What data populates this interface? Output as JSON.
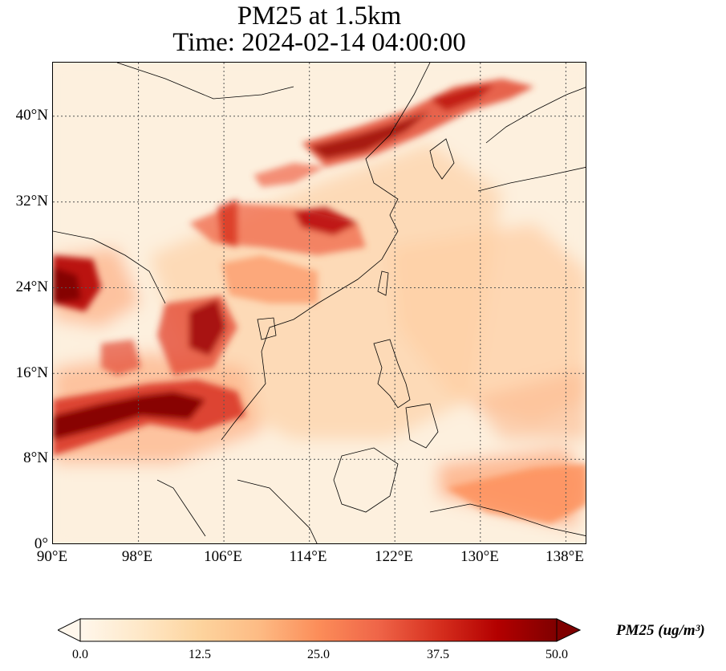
{
  "title": {
    "line1": "PM25 at 1.5km",
    "line2": "Time: 2024-02-14 04:00:00"
  },
  "map": {
    "extent": {
      "lon_min": 90,
      "lon_max": 140,
      "lat_min": 0,
      "lat_max": 45
    },
    "gridlines": true,
    "lat_ticks": [
      {
        "value": 40,
        "label": "40°N"
      },
      {
        "value": 32,
        "label": "32°N"
      },
      {
        "value": 24,
        "label": "24°N"
      },
      {
        "value": 16,
        "label": "16°N"
      },
      {
        "value": 8,
        "label": "8°N"
      },
      {
        "value": 0,
        "label": "0°"
      }
    ],
    "lon_ticks": [
      {
        "value": 90,
        "label": "90°E"
      },
      {
        "value": 98,
        "label": "98°E"
      },
      {
        "value": 106,
        "label": "106°E"
      },
      {
        "value": 114,
        "label": "114°E"
      },
      {
        "value": 122,
        "label": "122°E"
      },
      {
        "value": 130,
        "label": "130°E"
      },
      {
        "value": 138,
        "label": "138°E"
      }
    ],
    "colormap": "OrRd",
    "plumes": [
      {
        "region": "northeast China / Korea belt",
        "intensity": 0.9
      },
      {
        "region": "north China plain",
        "intensity": 0.85
      },
      {
        "region": "Indochina / Thailand",
        "intensity": 1.0
      },
      {
        "region": "Myanmar / Bangladesh",
        "intensity": 0.95
      },
      {
        "region": "south China",
        "intensity": 0.5
      },
      {
        "region": "western Pacific tongue",
        "intensity": 0.45
      }
    ]
  },
  "colorbar": {
    "min": 0.0,
    "max": 50.0,
    "extend": "both",
    "ticks": [
      "0.0",
      "12.5",
      "25.0",
      "37.5",
      "50.0"
    ],
    "label": "PM25 (ug/m³)",
    "colors": [
      "#fff7ec",
      "#fee8c8",
      "#fdd49e",
      "#fdbb84",
      "#fc8d59",
      "#ef6548",
      "#d7301f",
      "#b30000",
      "#7f0000"
    ]
  }
}
